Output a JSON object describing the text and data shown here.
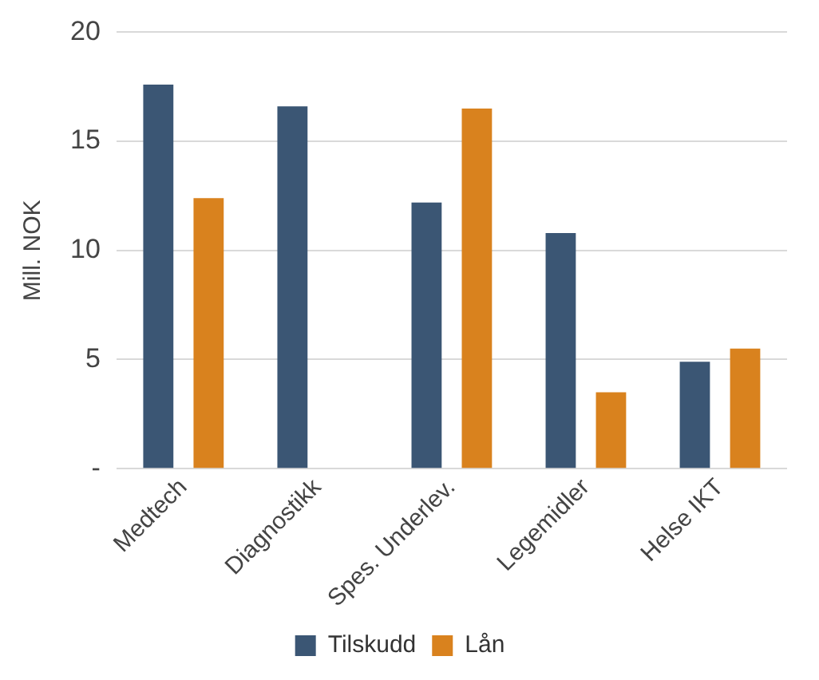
{
  "chart_data": {
    "type": "bar",
    "ylabel": "Mill. NOK",
    "categories": [
      "Medtech",
      "Diagnostikk",
      "Spes. Underlev.",
      "Legemidler",
      "Helse IKT"
    ],
    "series": [
      {
        "name": "Tilskudd",
        "color": "#3b5674",
        "values": [
          17.6,
          16.6,
          12.2,
          10.8,
          4.9
        ]
      },
      {
        "name": "Lån",
        "color": "#d9821e",
        "values": [
          12.4,
          0,
          16.5,
          3.5,
          5.5
        ]
      }
    ],
    "ylim": [
      0,
      20
    ],
    "yticks": [
      {
        "value": 0,
        "label": "-"
      },
      5,
      10,
      15,
      20
    ],
    "grid": "y",
    "legend": "bottom"
  }
}
